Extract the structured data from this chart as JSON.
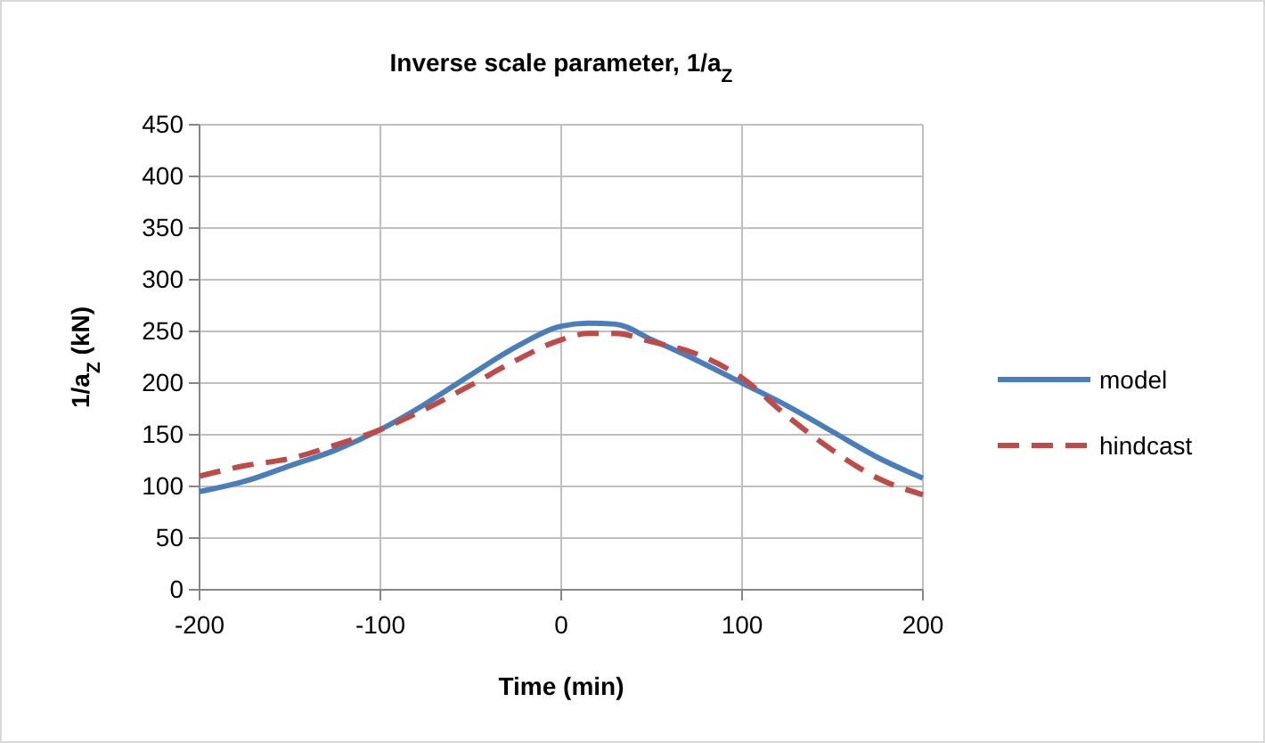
{
  "chart_data": {
    "type": "line",
    "title": "Inverse scale parameter, 1/a$_{Z}$",
    "xlabel": "Time (min)",
    "ylabel": "1/a$_{Z}$ (kN)",
    "xlim": [
      -200,
      200
    ],
    "xticks": [
      -200,
      -100,
      0,
      100,
      200
    ],
    "ylim": [
      0,
      450
    ],
    "yticks": [
      0,
      50,
      100,
      150,
      200,
      250,
      300,
      350,
      400,
      450
    ],
    "grid": true,
    "legend": "right",
    "series": [
      {
        "name": "model",
        "color": "#4a7ebb",
        "line_style": "solid",
        "x": [
          -200,
          -175,
          -150,
          -125,
          -100,
          -75,
          -50,
          -25,
          0,
          15,
          30,
          50,
          75,
          100,
          125,
          150,
          175,
          200
        ],
        "values": [
          95,
          105,
          120,
          135,
          155,
          180,
          208,
          235,
          255,
          258,
          257,
          242,
          222,
          200,
          178,
          153,
          128,
          108
        ]
      },
      {
        "name": "hindcast",
        "color": "#be4b48",
        "line_style": "dashed",
        "x": [
          -200,
          -175,
          -150,
          -125,
          -100,
          -75,
          -50,
          -25,
          0,
          15,
          30,
          50,
          75,
          100,
          125,
          150,
          175,
          200
        ],
        "values": [
          110,
          120,
          127,
          140,
          155,
          175,
          198,
          222,
          242,
          248,
          248,
          240,
          228,
          205,
          168,
          135,
          108,
          92
        ]
      }
    ]
  }
}
